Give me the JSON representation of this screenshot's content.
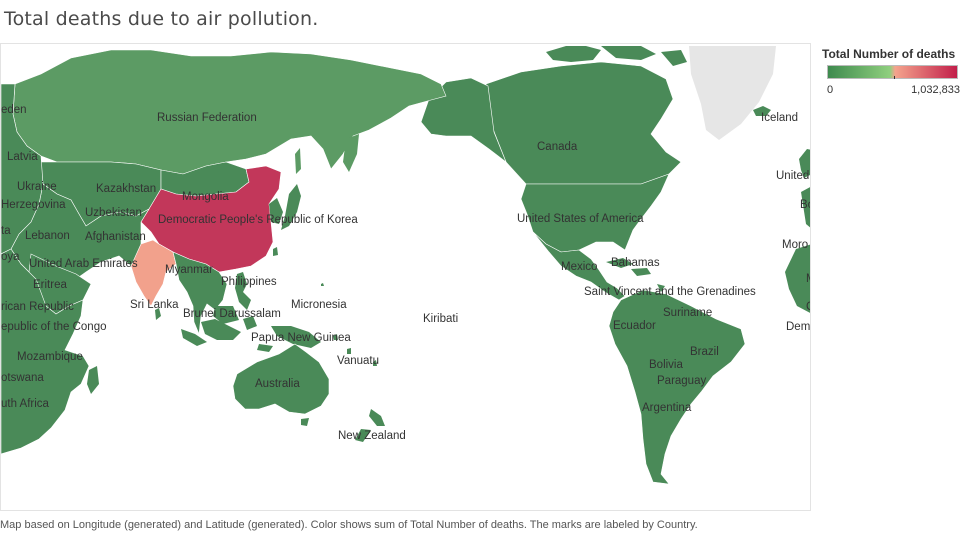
{
  "title": "Total deaths due to air pollution.",
  "legend": {
    "title": "Total Number of deaths",
    "min_label": "0",
    "max_label": "1,032,833",
    "colors": [
      "#3e8a4e",
      "#8fcf7e",
      "#f4a48d",
      "#c21f4a"
    ]
  },
  "colors": {
    "low": "#4a8a58",
    "low_mid": "#5c9b64",
    "china": "#c2375a",
    "india": "#f2a18c",
    "land_unknown": "#e6e6e6",
    "water": "#ffffff",
    "border": "#ffffff"
  },
  "labels": {
    "russian_federation": "Russian Federation",
    "canada": "Canada",
    "iceland": "Iceland",
    "united": "United",
    "b_partial": "Bo",
    "latvia": "Latvia",
    "eden": "eden",
    "ukraine": "Ukraine",
    "kazakhstan": "Kazakhstan",
    "mongolia": "Mongolia",
    "herzegovina": "Herzegovina",
    "uzbekistan": "Uzbekistan",
    "dprk": "Democratic People's Republic of Korea",
    "usa": "United States of America",
    "ta": "ta",
    "lebanon": "Lebanon",
    "afghanistan": "Afghanistan",
    "moro": "Moro",
    "oya": "oya",
    "uae": "United Arab Emirates",
    "myanmar": "Myanmar",
    "mexico": "Mexico",
    "bahamas": "Bahamas",
    "m_partial": "M",
    "eritrea": "Eritrea",
    "philippines": "Philippines",
    "saint_vincent": "Saint Vincent and the Grenadines",
    "rican_republic": "rican Republic",
    "sri_lanka": "Sri Lanka",
    "micronesia": "Micronesia",
    "c_partial": "C",
    "brunei": "Brunei Darussalam",
    "suriname": "Suriname",
    "kiribati": "Kiribati",
    "ecuador": "Ecuador",
    "dem": "Dem",
    "congo": "epublic of the Congo",
    "png": "Papua New Guinea",
    "brazil": "Brazil",
    "mozambique": "Mozambique",
    "vanuatu": "Vanuatu",
    "bolivia": "Bolivia",
    "botswana": "otswana",
    "australia": "Australia",
    "paraguay": "Paraguay",
    "south_africa": "uth Africa",
    "argentina": "Argentina",
    "new_zealand": "New Zealand"
  },
  "footnote": "Map based on Longitude (generated) and Latitude (generated).  Color shows sum of Total Number of deaths.  The marks are labeled by Country."
}
